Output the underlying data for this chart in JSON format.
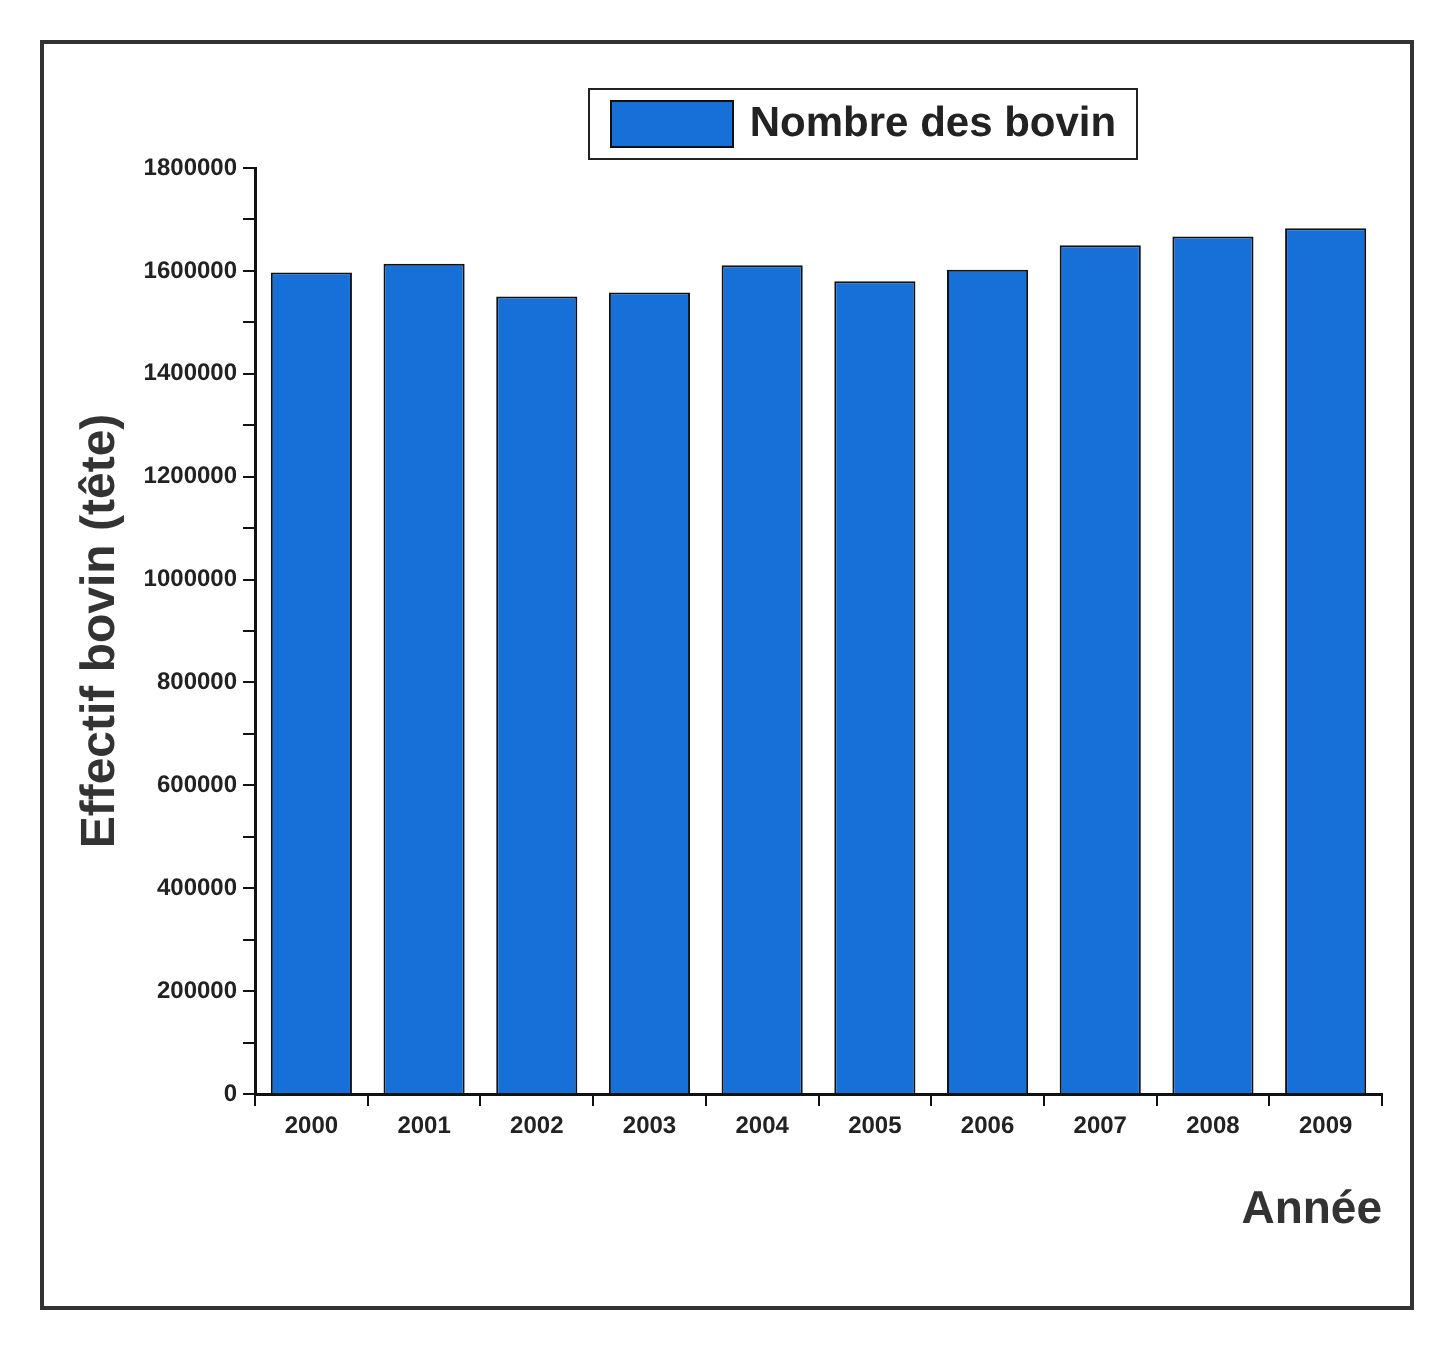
{
  "chart_data": {
    "type": "bar",
    "xlabel": "Année",
    "ylabel": "Effectif bovin (tête)",
    "categories": [
      "2000",
      "2001",
      "2002",
      "2003",
      "2004",
      "2005",
      "2006",
      "2007",
      "2008",
      "2009"
    ],
    "series": [
      {
        "name": "Nombre des bovin",
        "color": "#1670d8",
        "values": [
          1597000,
          1614000,
          1550000,
          1558000,
          1611000,
          1580000,
          1602000,
          1650000,
          1667000,
          1683000
        ]
      }
    ],
    "ylim": [
      0,
      1800000
    ],
    "yticks": [
      0,
      {
        "value": 100000,
        "label": null
      },
      200000,
      {
        "value": 300000,
        "label": null
      },
      400000,
      {
        "value": 500000,
        "label": null
      },
      600000,
      {
        "value": 700000,
        "label": null
      },
      800000,
      {
        "value": 900000,
        "label": null
      },
      1000000,
      {
        "value": 1100000,
        "label": null
      },
      1200000,
      {
        "value": 1300000,
        "label": null
      },
      1400000,
      {
        "value": 1500000,
        "label": null
      },
      1600000,
      {
        "value": 1700000,
        "label": null
      },
      1800000
    ],
    "legend": "top"
  }
}
